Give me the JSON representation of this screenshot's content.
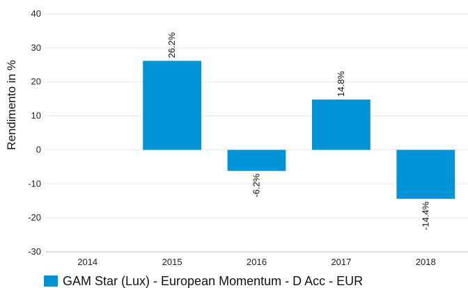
{
  "chart_data": {
    "type": "bar",
    "categories": [
      "2014",
      "2015",
      "2016",
      "2017",
      "2018"
    ],
    "series": [
      {
        "name": "GAM Star (Lux) - European Momentum - D Acc - EUR",
        "values": [
          null,
          26.2,
          -6.2,
          14.8,
          -14.4
        ],
        "labels": [
          "",
          "26.2%",
          "-6.2%",
          "14.8%",
          "-14.4%"
        ],
        "color": "#0094d6"
      }
    ],
    "ylabel": "Rendimento in %",
    "xlabel": "",
    "ylim": [
      -30,
      40
    ],
    "yticks": [
      -30,
      -20,
      -10,
      0,
      10,
      20,
      30,
      40
    ],
    "grid": true,
    "legend_position": "bottom-left"
  }
}
